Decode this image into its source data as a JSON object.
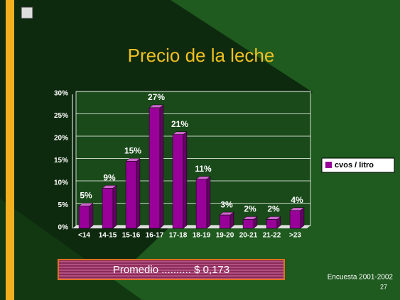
{
  "chart_data": {
    "type": "bar",
    "title": "Precio de la leche",
    "categories": [
      "<14",
      "14-15",
      "15-16",
      "16-17",
      "17-18",
      "18-19",
      "19-20",
      "20-21",
      "21-22",
      ">23"
    ],
    "series": [
      {
        "name": "cvos / litro",
        "color": "#990099",
        "values": [
          5,
          9,
          15,
          27,
          21,
          11,
          3,
          2,
          2,
          4
        ],
        "value_labels": [
          "5%",
          "9%",
          "15%",
          "27%",
          "21%",
          "11%",
          "3%",
          "2%",
          "2%",
          "4%"
        ]
      }
    ],
    "ylim": [
      0,
      30
    ],
    "yticks": [
      {
        "value": 0,
        "label": "0%"
      },
      {
        "value": 5,
        "label": "5%"
      },
      {
        "value": 10,
        "label": "10%"
      },
      {
        "value": 15,
        "label": "15%"
      },
      {
        "value": 20,
        "label": "20%"
      },
      {
        "value": 25,
        "label": "25%"
      },
      {
        "value": 30,
        "label": "30%"
      }
    ],
    "grid": true,
    "legend": "right",
    "annotations": [
      "Promedio .......... $ 0,173",
      "Encuesta 2001-2002",
      "27"
    ]
  }
}
